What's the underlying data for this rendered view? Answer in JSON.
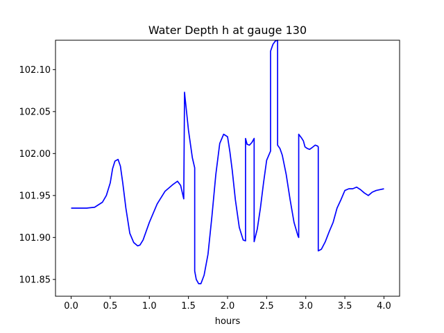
{
  "chart_data": {
    "type": "line",
    "title": "Water Depth h at gauge 130",
    "xlabel": "hours",
    "ylabel": "",
    "xlim": [
      -0.2,
      4.2
    ],
    "ylim": [
      101.83,
      102.135
    ],
    "xticks": [
      0.0,
      0.5,
      1.0,
      1.5,
      2.0,
      2.5,
      3.0,
      3.5,
      4.0
    ],
    "xtick_labels": [
      "0.0",
      "0.5",
      "1.0",
      "1.5",
      "2.0",
      "2.5",
      "3.0",
      "3.5",
      "4.0"
    ],
    "yticks": [
      101.85,
      101.9,
      101.95,
      102.0,
      102.05,
      102.1
    ],
    "ytick_labels": [
      "101.85",
      "101.90",
      "101.95",
      "102.00",
      "102.05",
      "102.10"
    ],
    "grid": false,
    "series": [
      {
        "color": "#0000ff",
        "x": [
          0.0,
          0.1,
          0.2,
          0.3,
          0.4,
          0.45,
          0.5,
          0.53,
          0.56,
          0.6,
          0.63,
          0.66,
          0.7,
          0.75,
          0.8,
          0.85,
          0.88,
          0.92,
          1.0,
          1.1,
          1.2,
          1.3,
          1.36,
          1.4,
          1.43,
          1.44,
          1.45,
          1.455,
          1.47,
          1.5,
          1.55,
          1.58,
          1.58,
          1.6,
          1.63,
          1.66,
          1.7,
          1.75,
          1.8,
          1.85,
          1.9,
          1.95,
          2.0,
          2.03,
          2.06,
          2.1,
          2.15,
          2.2,
          2.23,
          2.23,
          2.25,
          2.28,
          2.31,
          2.34,
          2.34,
          2.38,
          2.42,
          2.46,
          2.5,
          2.55,
          2.55,
          2.58,
          2.61,
          2.64,
          2.64,
          2.67,
          2.7,
          2.75,
          2.8,
          2.85,
          2.9,
          2.91,
          2.91,
          2.95,
          2.97,
          2.99,
          3.02,
          3.05,
          3.08,
          3.12,
          3.15,
          3.16,
          3.16,
          3.2,
          3.25,
          3.3,
          3.35,
          3.4,
          3.45,
          3.5,
          3.55,
          3.6,
          3.65,
          3.7,
          3.75,
          3.8,
          3.85,
          3.9,
          3.95,
          4.0
        ],
        "y": [
          101.935,
          101.935,
          101.935,
          101.936,
          101.942,
          101.95,
          101.965,
          101.982,
          101.991,
          101.993,
          101.985,
          101.965,
          101.935,
          101.905,
          101.894,
          101.89,
          101.891,
          101.897,
          101.918,
          101.94,
          101.955,
          101.963,
          101.967,
          101.962,
          101.95,
          101.946,
          102.073,
          102.068,
          102.055,
          102.028,
          101.995,
          101.983,
          101.86,
          101.85,
          101.845,
          101.845,
          101.855,
          101.88,
          101.925,
          101.975,
          102.012,
          102.023,
          102.02,
          102.002,
          101.98,
          101.945,
          101.912,
          101.897,
          101.896,
          102.018,
          102.011,
          102.01,
          102.013,
          102.018,
          101.895,
          101.91,
          101.935,
          101.965,
          101.992,
          102.003,
          102.122,
          102.13,
          102.134,
          102.135,
          102.01,
          102.006,
          101.998,
          101.975,
          101.945,
          101.918,
          101.902,
          101.9,
          102.023,
          102.018,
          102.015,
          102.008,
          102.006,
          102.005,
          102.007,
          102.01,
          102.009,
          102.008,
          101.884,
          101.886,
          101.895,
          101.907,
          101.918,
          101.935,
          101.945,
          101.956,
          101.958,
          101.958,
          101.96,
          101.957,
          101.953,
          101.95,
          101.954,
          101.956,
          101.957,
          101.958
        ]
      }
    ]
  }
}
